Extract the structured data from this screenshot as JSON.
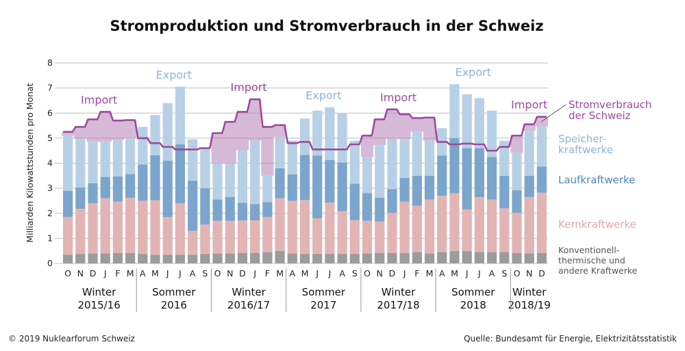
{
  "chart_data": {
    "type": "bar",
    "title": "Stromproduktion und Stromverbrauch in der Schweiz",
    "ylabel": "Milliarden Kilowattstunden pro Monat",
    "ylim": [
      0,
      8
    ],
    "yticks": [
      "0",
      "1",
      "2",
      "3",
      "4",
      "5",
      "6",
      "7",
      "8"
    ],
    "grid": true,
    "stacked": true,
    "months": [
      "O",
      "N",
      "D",
      "J",
      "F",
      "M",
      "A",
      "M",
      "J",
      "J",
      "A",
      "S",
      "O",
      "N",
      "D",
      "J",
      "F",
      "M",
      "A",
      "M",
      "J",
      "J",
      "A",
      "S",
      "O",
      "N",
      "D",
      "J",
      "F",
      "M",
      "A",
      "M",
      "J",
      "J",
      "A",
      "S",
      "O",
      "N",
      "D"
    ],
    "periods": [
      {
        "line1": "Winter",
        "line2": "2015/16",
        "start": 0,
        "end": 5
      },
      {
        "line1": "Sommer",
        "line2": "2016",
        "start": 6,
        "end": 11
      },
      {
        "line1": "Winter",
        "line2": "2016/17",
        "start": 12,
        "end": 17
      },
      {
        "line1": "Sommer",
        "line2": "2017",
        "start": 18,
        "end": 23
      },
      {
        "line1": "Winter",
        "line2": "2017/18",
        "start": 24,
        "end": 29
      },
      {
        "line1": "Sommer",
        "line2": "2018",
        "start": 30,
        "end": 35
      },
      {
        "line1": "Winter",
        "line2": "2018/19",
        "start": 36,
        "end": 38
      }
    ],
    "series": [
      {
        "name": "Konventionell-thermische und andere Kraftwerke",
        "color": "#9c9c9c",
        "values": [
          0.35,
          0.38,
          0.4,
          0.4,
          0.42,
          0.42,
          0.38,
          0.35,
          0.35,
          0.35,
          0.35,
          0.38,
          0.4,
          0.4,
          0.42,
          0.42,
          0.45,
          0.5,
          0.4,
          0.38,
          0.38,
          0.38,
          0.38,
          0.38,
          0.4,
          0.42,
          0.42,
          0.42,
          0.45,
          0.4,
          0.45,
          0.5,
          0.5,
          0.45,
          0.45,
          0.45,
          0.42,
          0.4,
          0.42
        ]
      },
      {
        "name": "Kernkraftwerke",
        "color": "#e3b4b4",
        "values": [
          1.5,
          1.8,
          2.0,
          2.2,
          2.05,
          2.2,
          2.12,
          2.17,
          1.5,
          2.05,
          0.95,
          1.17,
          1.3,
          1.3,
          1.3,
          1.3,
          1.4,
          2.1,
          2.1,
          2.15,
          1.42,
          2.05,
          1.7,
          1.35,
          1.3,
          1.25,
          1.6,
          2.05,
          1.85,
          2.15,
          2.25,
          2.3,
          1.65,
          2.2,
          2.1,
          1.75,
          1.6,
          2.25,
          2.4
        ]
      },
      {
        "name": "Laufkraftwerke",
        "color": "#7ba5cc",
        "values": [
          1.05,
          0.85,
          0.8,
          0.85,
          1.0,
          0.95,
          1.45,
          1.8,
          2.25,
          2.35,
          2.0,
          1.45,
          0.85,
          0.95,
          0.7,
          0.65,
          0.6,
          1.2,
          1.05,
          1.8,
          2.5,
          1.7,
          1.95,
          1.45,
          1.1,
          0.95,
          0.95,
          0.95,
          1.2,
          0.95,
          1.6,
          2.2,
          2.45,
          1.95,
          1.7,
          1.3,
          0.9,
          0.85,
          1.05
        ]
      },
      {
        "name": "Speicherkraftwerke",
        "color": "#b8d0e6",
        "values": [
          2.2,
          1.95,
          1.65,
          1.4,
          1.45,
          1.43,
          1.5,
          1.6,
          2.3,
          2.3,
          1.65,
          1.6,
          1.45,
          1.35,
          2.1,
          2.53,
          1.05,
          1.25,
          1.35,
          1.45,
          1.8,
          2.1,
          1.95,
          1.72,
          1.45,
          2.1,
          2.0,
          1.55,
          1.75,
          1.4,
          1.1,
          2.15,
          2.15,
          2.0,
          1.85,
          1.4,
          1.5,
          1.8,
          1.6
        ]
      },
      {
        "name": "Stromverbrauch der Schweiz",
        "type": "line",
        "color": "#9b4a9c",
        "values": [
          5.25,
          5.45,
          5.75,
          6.05,
          5.7,
          5.72,
          5.0,
          4.8,
          4.65,
          4.55,
          4.55,
          4.6,
          5.2,
          5.65,
          6.05,
          6.55,
          5.45,
          5.52,
          4.8,
          4.85,
          4.55,
          4.55,
          4.55,
          4.75,
          5.1,
          5.75,
          6.15,
          5.95,
          5.8,
          5.82,
          4.85,
          4.75,
          4.78,
          4.75,
          4.5,
          4.65,
          5.1,
          5.55,
          5.85
        ]
      }
    ],
    "annotations": {
      "import": "Import",
      "export": "Export",
      "import_color": "#b580b6",
      "export_color": "#c4d9ec"
    }
  },
  "legend": {
    "consumption_line1": "Stromverbrauch",
    "consumption_line2": "der Schweiz",
    "storage_line1": "Speicher-",
    "storage_line2": "kraftwerke",
    "run_of_river": "Laufkraftwerke",
    "nuclear": "Kernkraftwerke",
    "thermal_line1": "Konventionell-",
    "thermal_line2": "thermische und",
    "thermal_line3": "andere Kraftwerke",
    "colors": {
      "consumption": "#9b4a9c",
      "storage": "#8fb4d7",
      "run_of_river": "#4f86bb",
      "nuclear": "#e0a7a7",
      "thermal": "#555555"
    }
  },
  "footer": {
    "copyright": "© 2019 Nuklearforum Schweiz",
    "source": "Quelle: Bundesamt für Energie, Elektrizitätsstatistik"
  }
}
